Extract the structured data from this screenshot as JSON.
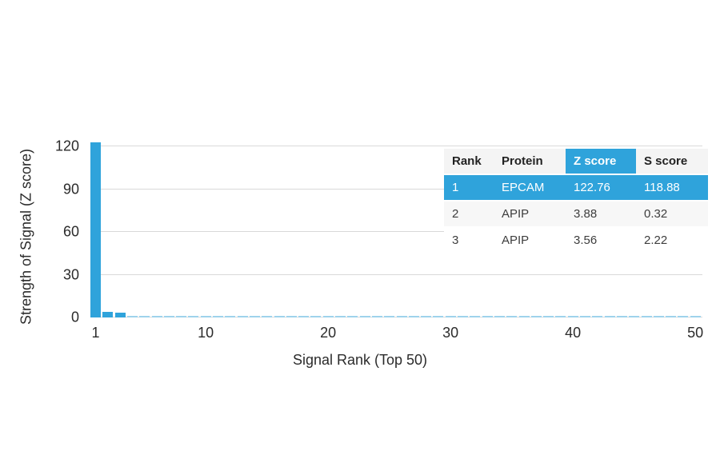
{
  "chart_data": {
    "type": "bar",
    "title": "",
    "xlabel": "Signal Rank (Top 50)",
    "ylabel": "Strength of Signal (Z score)",
    "x_ticks": [
      1,
      10,
      20,
      30,
      40,
      50
    ],
    "y_ticks": [
      0,
      30,
      60,
      90,
      120
    ],
    "xlim": [
      1,
      50
    ],
    "ylim": [
      0,
      120
    ],
    "grid": "horizontal",
    "legend": "none",
    "bar_color": "#2fa3db",
    "minor_bar_color": "#9fd3ec",
    "gridline_color": "#d9d9d9",
    "x": [
      1,
      2,
      3,
      4,
      5,
      6,
      7,
      8,
      9,
      10,
      11,
      12,
      13,
      14,
      15,
      16,
      17,
      18,
      19,
      20,
      21,
      22,
      23,
      24,
      25,
      26,
      27,
      28,
      29,
      30,
      31,
      32,
      33,
      34,
      35,
      36,
      37,
      38,
      39,
      40,
      41,
      42,
      43,
      44,
      45,
      46,
      47,
      48,
      49,
      50
    ],
    "values": [
      122.76,
      3.88,
      3.56,
      1.0,
      1.0,
      1.0,
      1.0,
      1.0,
      1.0,
      1.0,
      1.0,
      1.0,
      1.0,
      1.0,
      1.0,
      1.0,
      1.0,
      1.0,
      1.0,
      1.0,
      1.0,
      1.0,
      1.0,
      1.0,
      1.0,
      1.0,
      1.0,
      1.0,
      1.0,
      1.0,
      1.0,
      1.0,
      1.0,
      1.0,
      1.0,
      1.0,
      1.0,
      1.0,
      1.0,
      1.0,
      1.0,
      1.0,
      1.0,
      1.0,
      1.0,
      1.0,
      1.0,
      1.0,
      1.0,
      1.0
    ]
  },
  "table": {
    "headers": [
      "Rank",
      "Protein",
      "Z score",
      "S score"
    ],
    "highlight_color": "#2fa3db",
    "highlight_text_color": "#ffffff",
    "rows": [
      {
        "cells": [
          "1",
          "EPCAM",
          "122.76",
          "118.88"
        ],
        "highlight": true
      },
      {
        "cells": [
          "2",
          "APIP",
          "3.88",
          "0.32"
        ],
        "highlight": false
      },
      {
        "cells": [
          "3",
          "APIP",
          "3.56",
          "2.22"
        ],
        "highlight": false
      }
    ]
  }
}
